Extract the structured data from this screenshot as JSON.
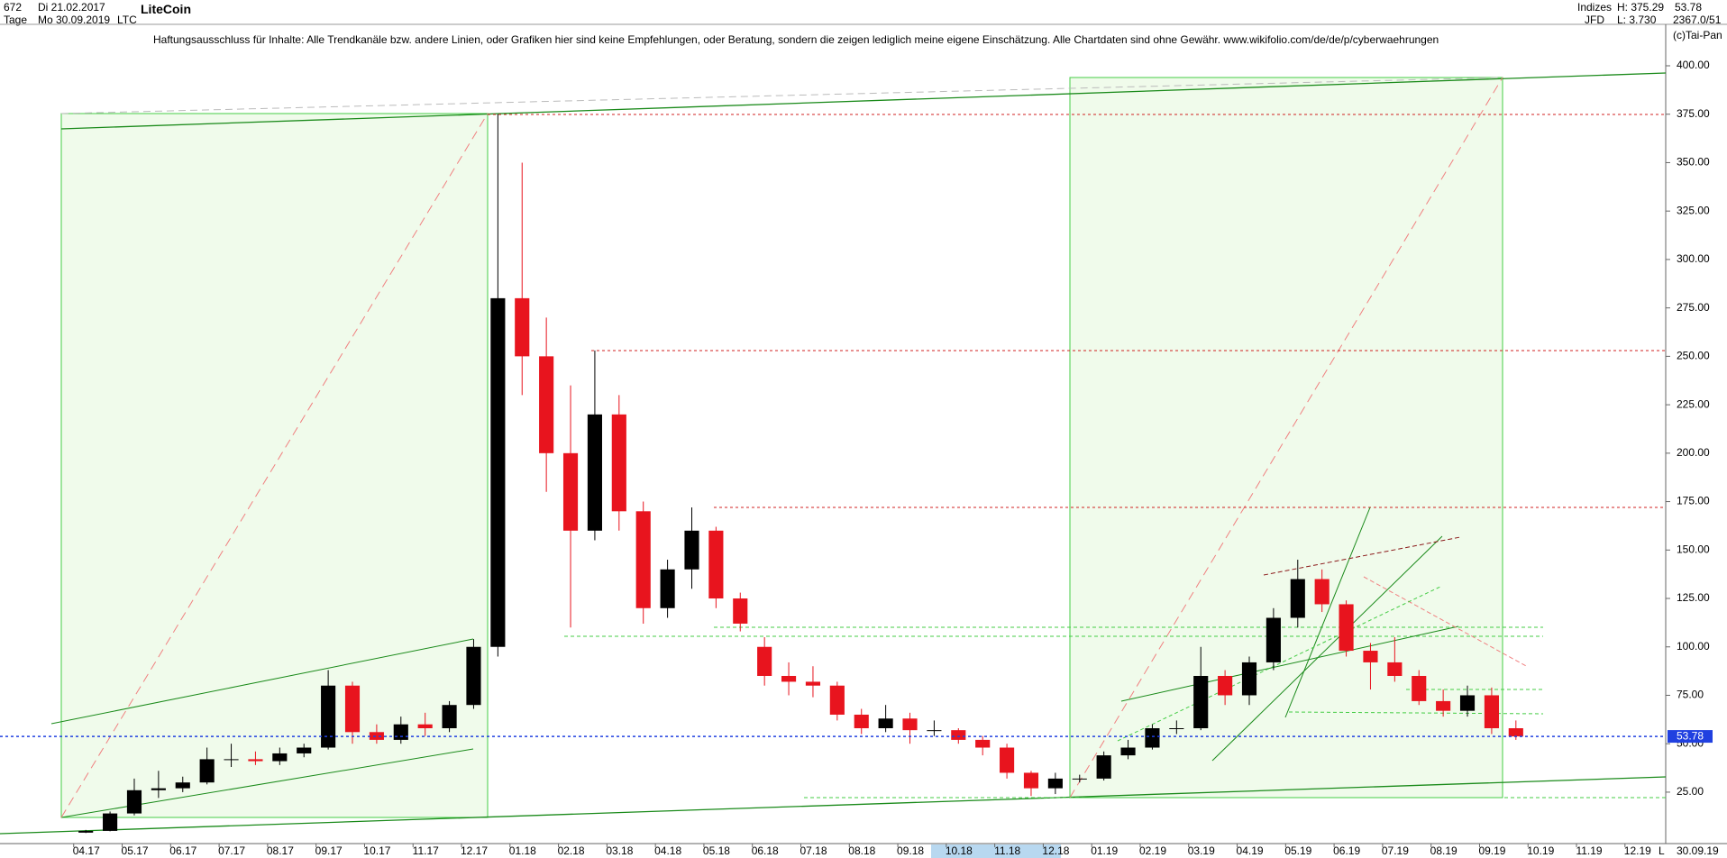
{
  "header": {
    "count": "672",
    "start_date": "Di 21.02.2017",
    "period": "Tage",
    "end_date": "Mo 30.09.2019",
    "name": "LiteCoin",
    "symbol": "LTC",
    "disclaimer": "Haftungsausschluss für Inhalte: Alle Trendkanäle bzw. andere Linien, oder Grafiken hier sind keine Empfehlungen, oder Beratung, sondern die zeigen lediglich meine eigene Einschätzung. Alle Chartdaten sind ohne Gewähr.  www.wikifolio.com/de/de/p/cyberwaehrungen",
    "market": "Indizes",
    "broker": "JFD",
    "high": "H: 375.29",
    "low": "L: 3.730",
    "last": "53.78",
    "stats": "2367.0/51",
    "copyright": "(c)Tai-Pan",
    "footer_date": "30.09.19",
    "footer_mode": "L"
  },
  "chart_data": {
    "type": "candlestick",
    "last_label": "53.78",
    "x": [
      0,
      0.5,
      1,
      1.5,
      2,
      2.5,
      3,
      3.5,
      4,
      4.5,
      5,
      5.5,
      6,
      6.5,
      7,
      7.5,
      8,
      8.5,
      9,
      9.5,
      10,
      10.5,
      11,
      11.5,
      12,
      12.5,
      13,
      13.5,
      14,
      14.5,
      15,
      15.5,
      16,
      16.5,
      17,
      17.5,
      18,
      18.5,
      19,
      19.5,
      20,
      20.5,
      21,
      21.5,
      22,
      22.5,
      23,
      23.5,
      24,
      24.5,
      25,
      25.5,
      26,
      26.5,
      27,
      27.5,
      28,
      28.5,
      29,
      29.5
    ],
    "open": [
      4.1,
      5,
      14,
      26,
      27,
      30,
      42,
      42,
      41,
      45,
      48,
      80,
      56,
      52,
      60,
      58,
      70,
      100,
      280,
      250,
      200,
      160,
      220,
      170,
      120,
      140,
      160,
      125,
      100,
      85,
      82,
      80,
      65,
      58,
      63,
      57,
      57,
      52,
      48,
      35,
      27,
      32,
      32,
      44,
      48,
      58,
      58,
      85,
      75,
      92,
      115,
      135,
      122,
      98,
      92,
      85,
      72,
      67,
      75,
      58
    ],
    "high": [
      5.5,
      15,
      32,
      36,
      33,
      48,
      50,
      46,
      48,
      50,
      88,
      82,
      60,
      64,
      66,
      72,
      104,
      375,
      350,
      270,
      235,
      253,
      230,
      175,
      145,
      172,
      162,
      128,
      105,
      92,
      90,
      82,
      68,
      70,
      66,
      62,
      58,
      54,
      50,
      36,
      35,
      34,
      46,
      52,
      60,
      62,
      100,
      88,
      95,
      120,
      145,
      140,
      124,
      102,
      105,
      88,
      78,
      80,
      79,
      62
    ],
    "low": [
      3.9,
      4.8,
      13,
      22,
      25,
      29,
      38,
      39,
      39,
      43,
      47,
      50,
      50,
      50,
      54,
      56,
      68,
      95,
      230,
      180,
      110,
      155,
      160,
      112,
      115,
      130,
      120,
      108,
      80,
      75,
      74,
      62,
      55,
      56,
      50,
      54,
      50,
      44,
      32,
      23,
      24,
      30,
      31,
      42,
      47,
      55,
      57,
      70,
      70,
      88,
      110,
      118,
      95,
      78,
      82,
      70,
      64,
      64,
      55,
      52
    ],
    "close": [
      5,
      14,
      26,
      27,
      30,
      42,
      42,
      41,
      45,
      48,
      80,
      56,
      52,
      60,
      58,
      70,
      100,
      280,
      250,
      200,
      160,
      220,
      170,
      120,
      140,
      160,
      125,
      112,
      85,
      82,
      80,
      65,
      58,
      63,
      57,
      57,
      52,
      48,
      35,
      27,
      32,
      32,
      44,
      48,
      58,
      58,
      85,
      75,
      92,
      115,
      135,
      122,
      98,
      92,
      85,
      72,
      67,
      75,
      58,
      53.78
    ],
    "up_color": "#000000",
    "down_color": "#e8141e",
    "xlim": [
      -1.52,
      32.84
    ],
    "ylim": [
      3.1,
      421.4
    ],
    "xticks": [
      {
        "value": 0,
        "label": "04.17"
      },
      {
        "value": 1,
        "label": "05.17"
      },
      {
        "value": 2,
        "label": "06.17"
      },
      {
        "value": 3,
        "label": "07.17"
      },
      {
        "value": 4,
        "label": "08.17"
      },
      {
        "value": 5,
        "label": "09.17"
      },
      {
        "value": 6,
        "label": "10.17"
      },
      {
        "value": 7,
        "label": "11.17"
      },
      {
        "value": 8,
        "label": "12.17"
      },
      {
        "value": 9,
        "label": "01.18"
      },
      {
        "value": 10,
        "label": "02.18"
      },
      {
        "value": 11,
        "label": "03.18"
      },
      {
        "value": 12,
        "label": "04.18"
      },
      {
        "value": 13,
        "label": "05.18"
      },
      {
        "value": 14,
        "label": "06.18"
      },
      {
        "value": 15,
        "label": "07.18"
      },
      {
        "value": 16,
        "label": "08.18"
      },
      {
        "value": 17,
        "label": "09.18"
      },
      {
        "value": 18,
        "label": "10.18"
      },
      {
        "value": 19,
        "label": "11.18"
      },
      {
        "value": 20,
        "label": "12.18"
      },
      {
        "value": 21,
        "label": "01.19"
      },
      {
        "value": 22,
        "label": "02.19"
      },
      {
        "value": 23,
        "label": "03.19"
      },
      {
        "value": 24,
        "label": "04.19"
      },
      {
        "value": 25,
        "label": "05.19"
      },
      {
        "value": 26,
        "label": "06.19"
      },
      {
        "value": 27,
        "label": "07.19"
      },
      {
        "value": 28,
        "label": "08.19"
      },
      {
        "value": 29,
        "label": "09.19"
      },
      {
        "value": 30,
        "label": "10.19"
      },
      {
        "value": 31,
        "label": "11.19"
      },
      {
        "value": 32,
        "label": "12.19"
      }
    ],
    "yticks": [
      {
        "value": 25,
        "label": "25.00"
      },
      {
        "value": 50,
        "label": "50.00"
      },
      {
        "value": 75,
        "label": "75.00"
      },
      {
        "value": 100,
        "label": "100.00"
      },
      {
        "value": 125,
        "label": "125.00"
      },
      {
        "value": 150,
        "label": "150.00"
      },
      {
        "value": 175,
        "label": "175.00"
      },
      {
        "value": 200,
        "label": "200.00"
      },
      {
        "value": 225,
        "label": "225.00"
      },
      {
        "value": 250,
        "label": "250.00"
      },
      {
        "value": 275,
        "label": "275.00"
      },
      {
        "value": 300,
        "label": "300.00"
      },
      {
        "value": 325,
        "label": "325.00"
      },
      {
        "value": 350,
        "label": "350.00"
      },
      {
        "value": 375,
        "label": "375.00"
      },
      {
        "value": 400,
        "label": "400.00"
      }
    ]
  }
}
